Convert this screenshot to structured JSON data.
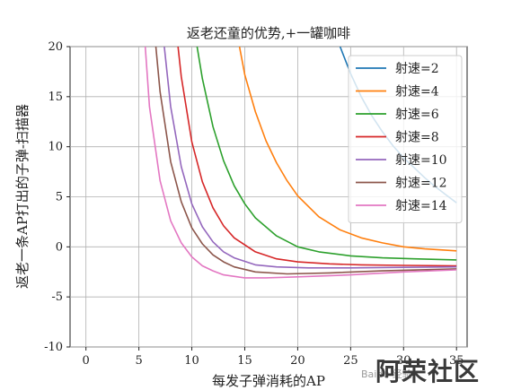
{
  "chart_data": {
    "type": "line",
    "title": "返老还童的优势,+一罐咖啡",
    "xlabel": "每发子弹消耗的AP",
    "ylabel": "返老一条AP打出的子弹-扫描器",
    "xlim": [
      -1.5,
      36
    ],
    "ylim": [
      -10,
      20
    ],
    "xticks": [
      0,
      5,
      10,
      15,
      20,
      25,
      30,
      35
    ],
    "yticks": [
      -10,
      -5,
      0,
      5,
      10,
      15,
      20
    ],
    "grid": true,
    "legend_position": "top-right",
    "series": [
      {
        "name": "射速=2",
        "color": "#1f77b4",
        "x": [
          24,
          25,
          26,
          27,
          28,
          29,
          30,
          31,
          32,
          33,
          34,
          35
        ],
        "y": [
          20.0,
          17.3,
          15.0,
          13.1,
          11.5,
          10.1,
          8.9,
          7.9,
          6.9,
          6.0,
          5.2,
          4.4
        ]
      },
      {
        "name": "射速=4",
        "color": "#ff7f0e",
        "x": [
          14.5,
          15,
          16,
          17,
          18,
          19,
          20,
          22,
          24,
          26,
          28,
          30,
          32,
          35
        ],
        "y": [
          20.0,
          17.2,
          13.5,
          10.6,
          8.4,
          6.6,
          5.1,
          3.0,
          1.7,
          0.9,
          0.4,
          0.0,
          -0.2,
          -0.4
        ]
      },
      {
        "name": "射速=6",
        "color": "#2ca02c",
        "x": [
          10.5,
          11,
          12,
          13,
          14,
          15,
          16,
          18,
          20,
          22,
          25,
          28,
          31,
          35
        ],
        "y": [
          20.0,
          16.8,
          12.0,
          8.6,
          6.1,
          4.3,
          2.9,
          1.1,
          0.0,
          -0.5,
          -0.9,
          -1.1,
          -1.2,
          -1.3
        ]
      },
      {
        "name": "射速=8",
        "color": "#d62728",
        "x": [
          8.7,
          9,
          10,
          11,
          12,
          13,
          14,
          16,
          18,
          20,
          23,
          26,
          30,
          35
        ],
        "y": [
          20.0,
          17.0,
          10.5,
          6.5,
          3.9,
          2.1,
          0.9,
          -0.5,
          -1.2,
          -1.5,
          -1.7,
          -1.8,
          -1.85,
          -1.9
        ]
      },
      {
        "name": "射速=10",
        "color": "#9467bd",
        "x": [
          7.4,
          8,
          9,
          10,
          11,
          12,
          13,
          14,
          16,
          18,
          21,
          25,
          30,
          35
        ],
        "y": [
          20.0,
          14.0,
          8.0,
          4.3,
          2.0,
          0.5,
          -0.5,
          -1.1,
          -1.8,
          -2.0,
          -2.1,
          -2.1,
          -2.05,
          -2.0
        ]
      },
      {
        "name": "射速=12",
        "color": "#8c564b",
        "x": [
          6.6,
          7,
          8,
          9,
          10,
          11,
          12,
          13,
          14,
          16,
          19,
          23,
          28,
          35
        ],
        "y": [
          20.0,
          15.5,
          8.5,
          4.5,
          1.9,
          0.3,
          -0.8,
          -1.5,
          -2.0,
          -2.5,
          -2.7,
          -2.6,
          -2.4,
          -2.2
        ]
      },
      {
        "name": "射速=14",
        "color": "#e377c2",
        "x": [
          5.6,
          6,
          7,
          8,
          9,
          10,
          11,
          12,
          13,
          15,
          17,
          20,
          25,
          30,
          35
        ],
        "y": [
          20.0,
          14.0,
          6.6,
          2.6,
          0.4,
          -1.0,
          -1.9,
          -2.4,
          -2.8,
          -3.1,
          -3.1,
          -3.0,
          -2.8,
          -2.5,
          -2.3
        ]
      }
    ]
  },
  "watermark": {
    "brand": "阿荣社区",
    "small": "Baidu 经验"
  }
}
